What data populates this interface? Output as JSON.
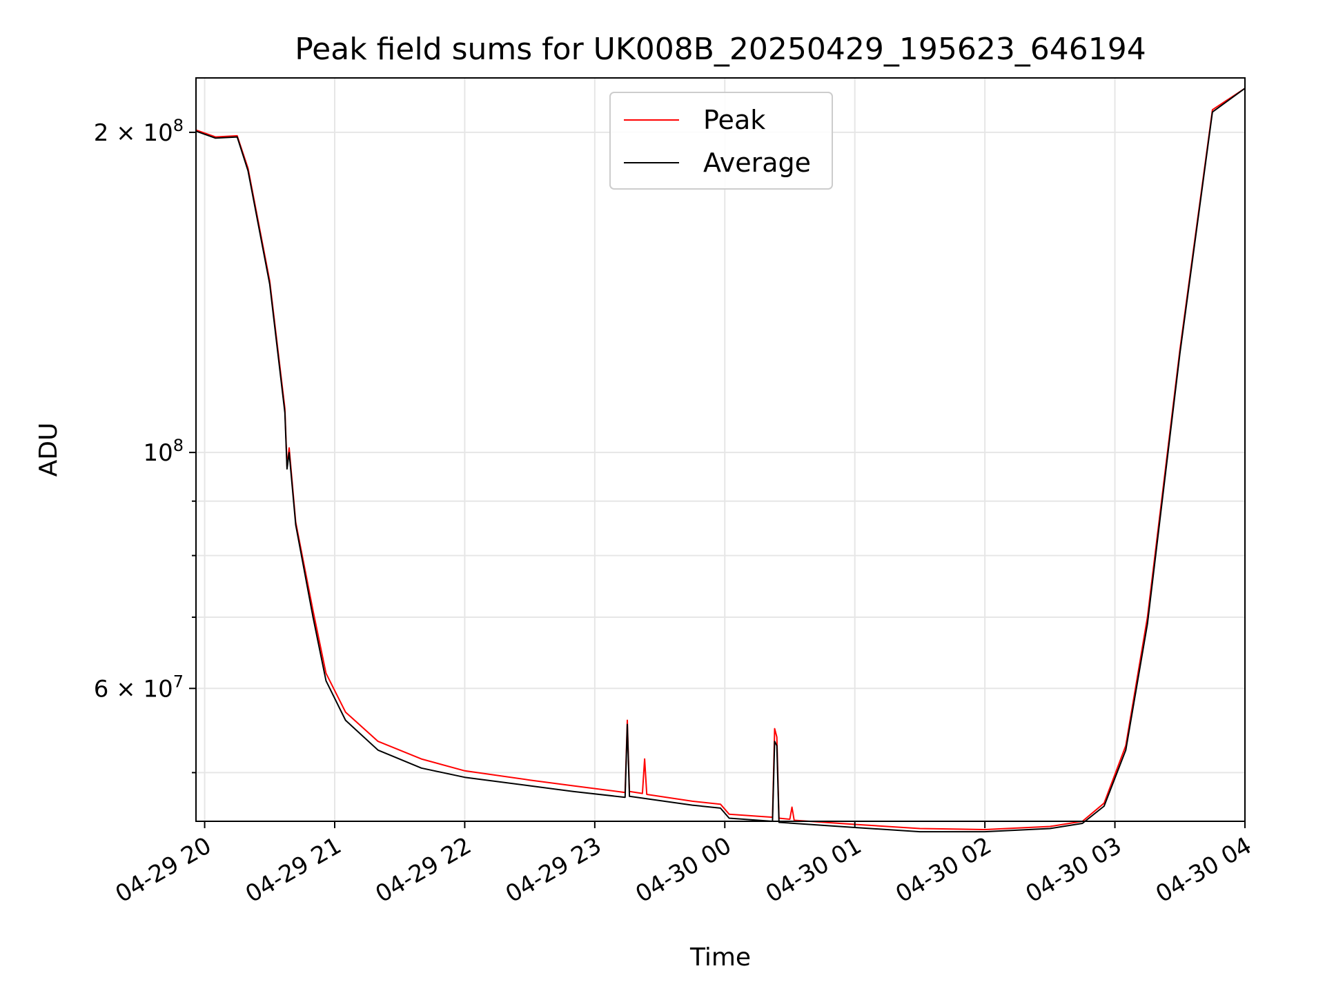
{
  "chart_data": {
    "type": "line",
    "title": "Peak field sums for UK008B_20250429_195623_646194",
    "xlabel": "Time",
    "ylabel": "ADU",
    "yscale": "log",
    "ylim": [
      45000000,
      225000000
    ],
    "xlim": [
      "04-29 19:56",
      "04-30 04:00"
    ],
    "grid": true,
    "legend_position": "top-center",
    "x_tick_labels": [
      "04-29 20",
      "04-29 21",
      "04-29 22",
      "04-29 23",
      "04-30 00",
      "04-30 01",
      "04-30 02",
      "04-30 03",
      "04-30 04"
    ],
    "y_tick_labels": [
      {
        "value": 200000000,
        "mantissa": "2",
        "times": "×",
        "base": "10",
        "exp": "8"
      },
      {
        "value": 100000000,
        "mantissa": "",
        "times": "",
        "base": "10",
        "exp": "8"
      },
      {
        "value": 60000000,
        "mantissa": "6",
        "times": "×",
        "base": "10",
        "exp": "7"
      }
    ],
    "series": [
      {
        "name": "Peak",
        "color": "#ff0000",
        "points": [
          [
            "04-29 19:56",
            201000000
          ],
          [
            "04-29 20:05",
            198000000
          ],
          [
            "04-29 20:15",
            198500000
          ],
          [
            "04-29 20:20",
            185000000
          ],
          [
            "04-29 20:30",
            145000000
          ],
          [
            "04-29 20:37",
            110000000
          ],
          [
            "04-29 20:38",
            97000000
          ],
          [
            "04-29 20:39",
            101000000
          ],
          [
            "04-29 20:42",
            86000000
          ],
          [
            "04-29 20:50",
            71000000
          ],
          [
            "04-29 20:56",
            62000000
          ],
          [
            "04-29 21:05",
            57000000
          ],
          [
            "04-29 21:20",
            53500000
          ],
          [
            "04-29 21:40",
            51500000
          ],
          [
            "04-29 22:00",
            50200000
          ],
          [
            "04-29 22:30",
            49200000
          ],
          [
            "04-29 22:50",
            48600000
          ],
          [
            "04-29 23:14",
            47900000
          ],
          [
            "04-29 23:15",
            56000000
          ],
          [
            "04-29 23:16",
            48000000
          ],
          [
            "04-29 23:22",
            47800000
          ],
          [
            "04-29 23:23",
            51500000
          ],
          [
            "04-29 23:24",
            47700000
          ],
          [
            "04-29 23:45",
            47000000
          ],
          [
            "04-29 23:58",
            46700000
          ],
          [
            "04-30 00:02",
            45700000
          ],
          [
            "04-30 00:15",
            45500000
          ],
          [
            "04-30 00:22",
            45400000
          ],
          [
            "04-30 00:23",
            55000000
          ],
          [
            "04-30 00:24",
            54000000
          ],
          [
            "04-30 00:25",
            45300000
          ],
          [
            "04-30 00:30",
            45200000
          ],
          [
            "04-30 00:31",
            46400000
          ],
          [
            "04-30 00:32",
            45100000
          ],
          [
            "04-30 01:00",
            44700000
          ],
          [
            "04-30 01:30",
            44300000
          ],
          [
            "04-30 02:00",
            44200000
          ],
          [
            "04-30 02:30",
            44500000
          ],
          [
            "04-30 02:45",
            45000000
          ],
          [
            "04-30 02:55",
            46800000
          ],
          [
            "04-30 03:05",
            53000000
          ],
          [
            "04-30 03:15",
            70000000
          ],
          [
            "04-30 03:30",
            125000000
          ],
          [
            "04-30 03:45",
            210000000
          ],
          [
            "04-30 04:00",
            220000000
          ]
        ]
      },
      {
        "name": "Average",
        "color": "#000000",
        "points": [
          [
            "04-29 19:56",
            200500000
          ],
          [
            "04-29 20:05",
            197500000
          ],
          [
            "04-29 20:15",
            198000000
          ],
          [
            "04-29 20:20",
            184000000
          ],
          [
            "04-29 20:30",
            144000000
          ],
          [
            "04-29 20:37",
            109000000
          ],
          [
            "04-29 20:38",
            96500000
          ],
          [
            "04-29 20:39",
            100000000
          ],
          [
            "04-29 20:42",
            85500000
          ],
          [
            "04-29 20:50",
            70000000
          ],
          [
            "04-29 20:56",
            61000000
          ],
          [
            "04-29 21:05",
            56000000
          ],
          [
            "04-29 21:20",
            52500000
          ],
          [
            "04-29 21:40",
            50500000
          ],
          [
            "04-29 22:00",
            49500000
          ],
          [
            "04-29 22:30",
            48600000
          ],
          [
            "04-29 22:50",
            48000000
          ],
          [
            "04-29 23:14",
            47400000
          ],
          [
            "04-29 23:15",
            55500000
          ],
          [
            "04-29 23:16",
            47500000
          ],
          [
            "04-29 23:45",
            46600000
          ],
          [
            "04-29 23:58",
            46300000
          ],
          [
            "04-30 00:02",
            45300000
          ],
          [
            "04-30 00:22",
            45000000
          ],
          [
            "04-30 00:23",
            53500000
          ],
          [
            "04-30 00:24",
            53000000
          ],
          [
            "04-30 00:25",
            44900000
          ],
          [
            "04-30 01:00",
            44400000
          ],
          [
            "04-30 01:30",
            44000000
          ],
          [
            "04-30 02:00",
            44000000
          ],
          [
            "04-30 02:30",
            44300000
          ],
          [
            "04-30 02:45",
            44800000
          ],
          [
            "04-30 02:55",
            46500000
          ],
          [
            "04-30 03:05",
            52500000
          ],
          [
            "04-30 03:15",
            69000000
          ],
          [
            "04-30 03:30",
            124000000
          ],
          [
            "04-30 03:45",
            209000000
          ],
          [
            "04-30 04:00",
            220000000
          ]
        ]
      }
    ]
  }
}
